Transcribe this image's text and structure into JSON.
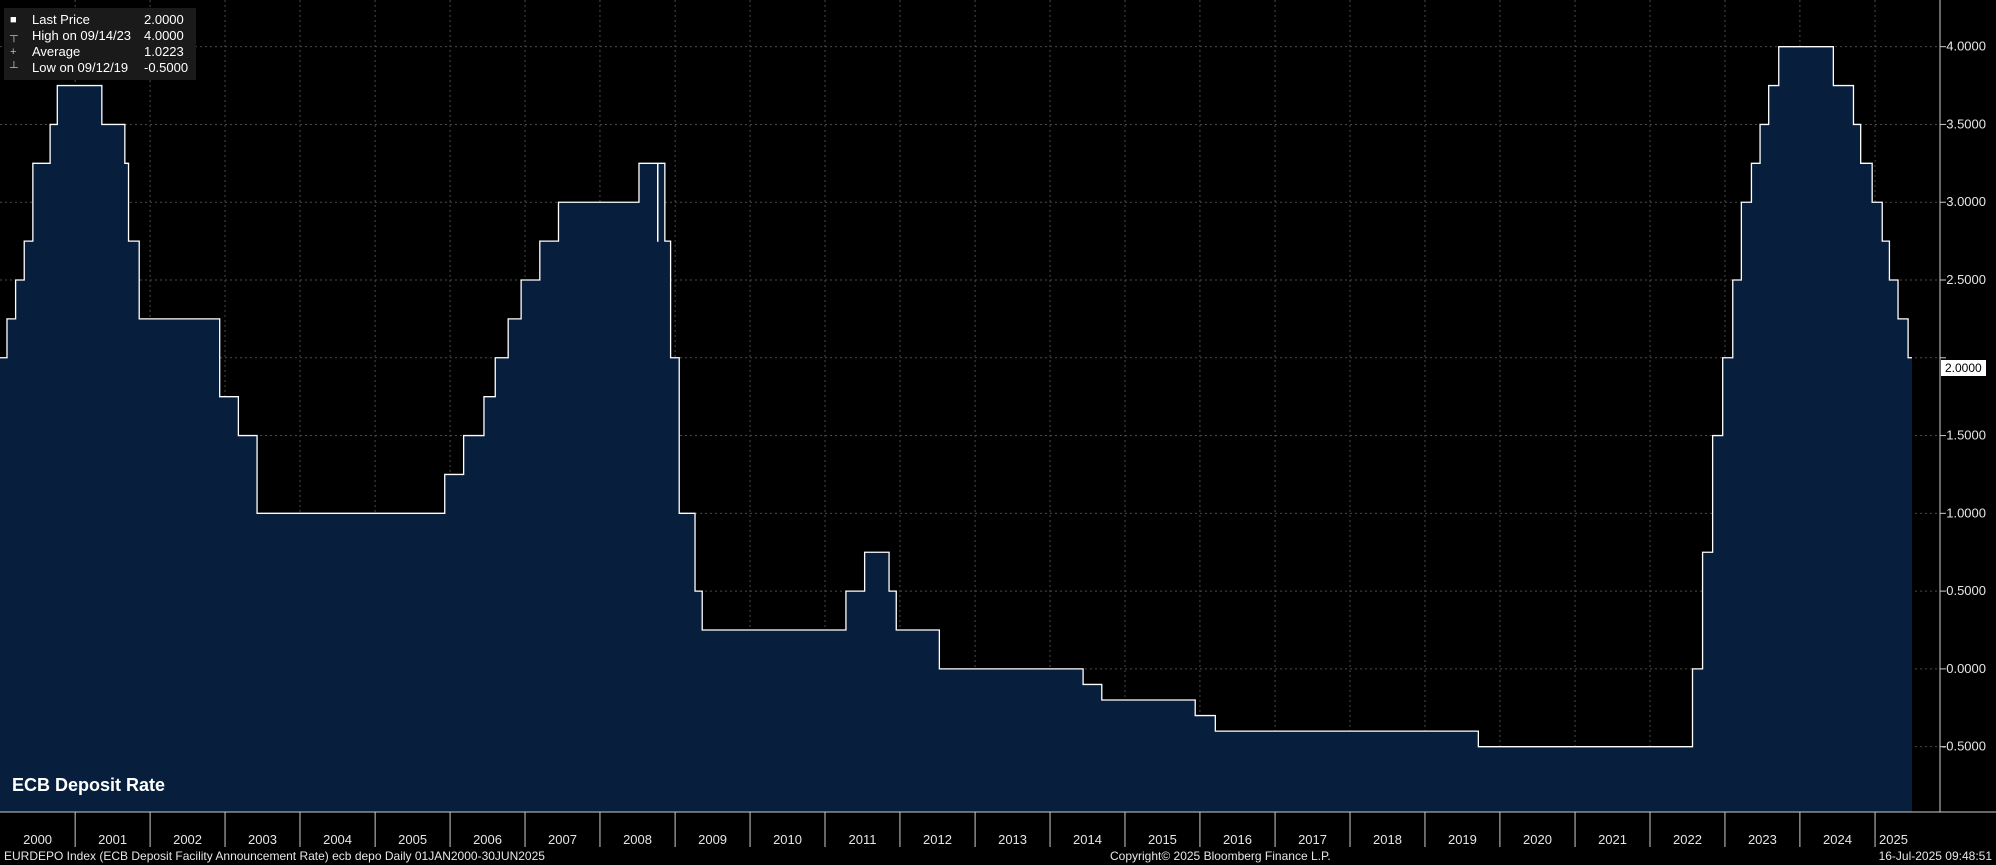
{
  "legend": {
    "rows": [
      {
        "mark": "■",
        "name": "Last Price",
        "value": "2.0000"
      },
      {
        "mark": "┬",
        "name": "High on 09/14/23",
        "value": "4.0000"
      },
      {
        "mark": "+",
        "name": "Average",
        "value": "1.0223"
      },
      {
        "mark": "┴",
        "name": "Low on 09/12/19",
        "value": "-0.5000"
      }
    ]
  },
  "series_label": "ECB Deposit Rate",
  "last_value_label": "2.0000",
  "footer": {
    "left": "EURDEPO Index (ECB Deposit Facility Announcement Rate) ecb depo  Daily 01JAN2000-30JUN2025",
    "center": "Copyright© 2025 Bloomberg Finance L.P.",
    "right": "16-Jul-2025 09:48:51"
  },
  "colors": {
    "fill": "#071f3d",
    "line": "#ffffff",
    "background": "#000000"
  },
  "chart_data": {
    "type": "area",
    "title": "ECB Deposit Rate",
    "xlabel": "",
    "ylabel": "",
    "x_range": [
      "2000-01-01",
      "2025-06-30"
    ],
    "ylim": [
      -0.92,
      4.3
    ],
    "grid": true,
    "legend_position": "top-left",
    "y_ticks": [
      "4.0000",
      "3.5000",
      "3.0000",
      "2.5000",
      "2.0000",
      "1.5000",
      "1.0000",
      "0.5000",
      "0.0000",
      "-0.5000"
    ],
    "x_ticks": [
      "2000",
      "2001",
      "2002",
      "2003",
      "2004",
      "2005",
      "2006",
      "2007",
      "2008",
      "2009",
      "2010",
      "2011",
      "2012",
      "2013",
      "2014",
      "2015",
      "2016",
      "2017",
      "2018",
      "2019",
      "2020",
      "2021",
      "2022",
      "2023",
      "2024",
      "2025"
    ],
    "series": [
      {
        "name": "ECB Deposit Rate",
        "points": [
          [
            "2000-01-01",
            2.0
          ],
          [
            "2000-02-04",
            2.25
          ],
          [
            "2000-03-17",
            2.5
          ],
          [
            "2000-04-28",
            2.75
          ],
          [
            "2000-06-09",
            3.25
          ],
          [
            "2000-09-01",
            3.5
          ],
          [
            "2000-10-06",
            3.75
          ],
          [
            "2001-05-11",
            3.5
          ],
          [
            "2001-08-31",
            3.25
          ],
          [
            "2001-09-18",
            2.75
          ],
          [
            "2001-11-09",
            2.25
          ],
          [
            "2002-12-06",
            1.75
          ],
          [
            "2003-03-07",
            1.5
          ],
          [
            "2003-06-06",
            1.0
          ],
          [
            "2005-12-06",
            1.25
          ],
          [
            "2006-03-08",
            1.5
          ],
          [
            "2006-06-15",
            1.75
          ],
          [
            "2006-08-09",
            2.0
          ],
          [
            "2006-10-11",
            2.25
          ],
          [
            "2006-12-13",
            2.5
          ],
          [
            "2007-03-14",
            2.75
          ],
          [
            "2007-06-13",
            3.0
          ],
          [
            "2008-07-09",
            3.25
          ],
          [
            "2008-10-08",
            2.75
          ],
          [
            "2008-10-09",
            3.25
          ],
          [
            "2008-11-12",
            2.75
          ],
          [
            "2008-12-10",
            2.0
          ],
          [
            "2009-01-21",
            1.0
          ],
          [
            "2009-04-08",
            0.5
          ],
          [
            "2009-05-13",
            0.25
          ],
          [
            "2011-04-13",
            0.5
          ],
          [
            "2011-07-13",
            0.75
          ],
          [
            "2011-11-09",
            0.5
          ],
          [
            "2011-12-14",
            0.25
          ],
          [
            "2012-07-11",
            0.0
          ],
          [
            "2014-06-11",
            -0.1
          ],
          [
            "2014-09-10",
            -0.2
          ],
          [
            "2015-12-09",
            -0.3
          ],
          [
            "2016-03-16",
            -0.4
          ],
          [
            "2019-09-18",
            -0.5
          ],
          [
            "2022-07-27",
            0.0
          ],
          [
            "2022-09-14",
            0.75
          ],
          [
            "2022-11-02",
            1.5
          ],
          [
            "2022-12-21",
            2.0
          ],
          [
            "2023-02-08",
            2.5
          ],
          [
            "2023-03-22",
            3.0
          ],
          [
            "2023-05-10",
            3.25
          ],
          [
            "2023-06-21",
            3.5
          ],
          [
            "2023-08-02",
            3.75
          ],
          [
            "2023-09-20",
            4.0
          ],
          [
            "2024-06-12",
            3.75
          ],
          [
            "2024-09-18",
            3.5
          ],
          [
            "2024-10-23",
            3.25
          ],
          [
            "2024-12-18",
            3.0
          ],
          [
            "2025-02-05",
            2.75
          ],
          [
            "2025-03-12",
            2.5
          ],
          [
            "2025-04-23",
            2.25
          ],
          [
            "2025-06-11",
            2.0
          ],
          [
            "2025-06-30",
            2.0
          ]
        ]
      }
    ]
  }
}
